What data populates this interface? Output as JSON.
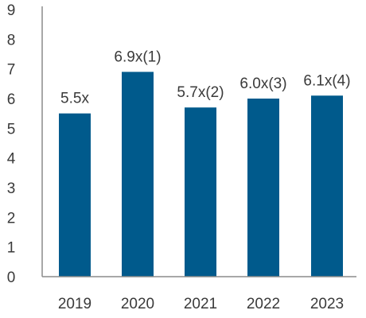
{
  "chart_data": {
    "type": "bar",
    "categories": [
      "2019",
      "2020",
      "2021",
      "2022",
      "2023"
    ],
    "values": [
      5.5,
      6.9,
      5.7,
      6.0,
      6.1
    ],
    "data_labels": [
      "5.5x",
      "6.9x(1)",
      "5.7x(2)",
      "6.0x(3)",
      "6.1x(4)"
    ],
    "yticks": [
      "0",
      "1",
      "2",
      "3",
      "4",
      "5",
      "6",
      "7",
      "8",
      "9"
    ],
    "ylim": [
      0,
      9
    ],
    "grid": false,
    "legend": "none",
    "bar_color": "#005a8c",
    "title": "",
    "xlabel": "",
    "ylabel": ""
  }
}
